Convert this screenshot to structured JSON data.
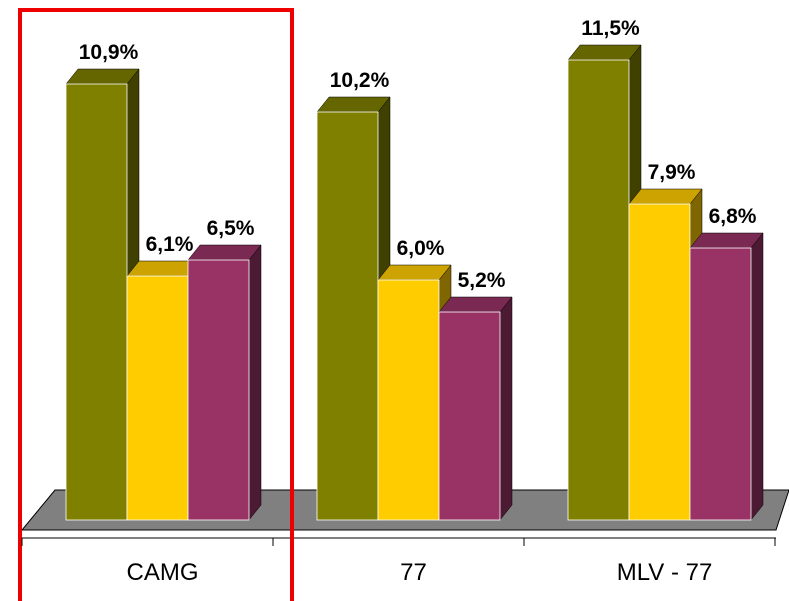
{
  "chart_data": {
    "type": "bar3d",
    "categories": [
      "CAMG",
      "77",
      "MLV - 77"
    ],
    "series": [
      {
        "color": "#808000",
        "values": [
          10.9,
          10.2,
          11.5
        ],
        "value_labels": [
          "10,9%",
          "10,2%",
          "11,5%"
        ]
      },
      {
        "color": "#ffcc00",
        "values": [
          6.1,
          6.0,
          7.9
        ],
        "value_labels": [
          "6,1%",
          "6,0%",
          "7,9%"
        ]
      },
      {
        "color": "#993366",
        "values": [
          6.5,
          5.2,
          6.8
        ],
        "value_labels": [
          "6,5%",
          "5,2%",
          "6,8%"
        ]
      }
    ]
  }
}
